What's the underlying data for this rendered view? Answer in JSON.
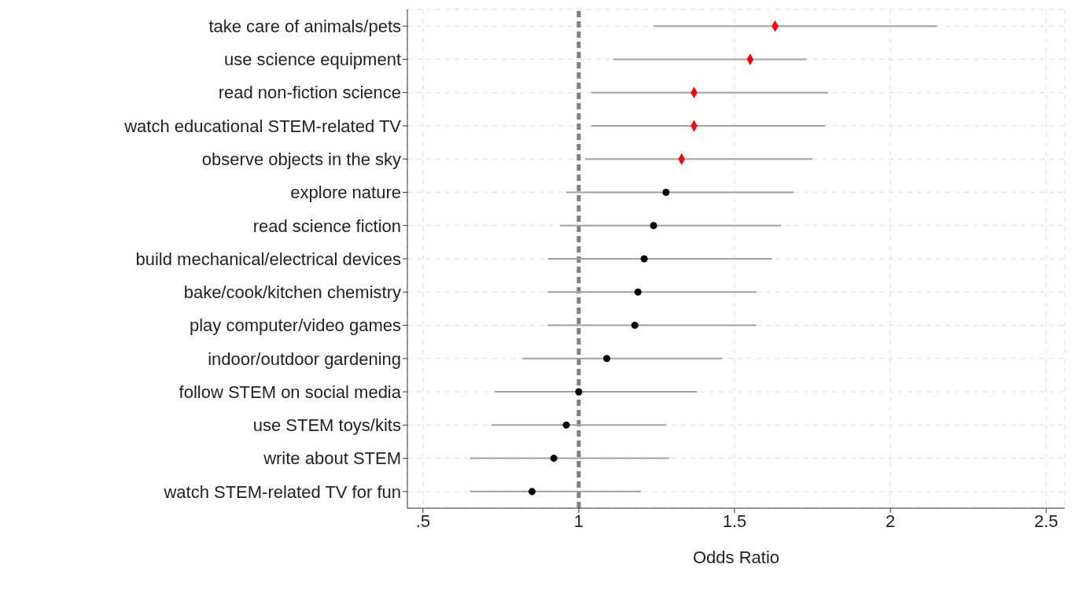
{
  "chart_data": {
    "type": "scatter",
    "orientation": "horizontal",
    "xlabel": "Odds Ratio",
    "categories": [
      "take care of animals/pets",
      "use science equipment",
      "read non-fiction science",
      "watch educational STEM-related TV",
      "observe objects in the sky",
      "explore nature",
      "read science fiction",
      "build mechanical/electrical devices",
      "bake/cook/kitchen chemistry",
      "play computer/video games",
      "indoor/outdoor gardening",
      "follow STEM on social media",
      "use STEM toys/kits",
      "write about STEM",
      "watch STEM-related TV for fun"
    ],
    "series": [
      {
        "color": "#ff0000",
        "marker": "diamond",
        "values": [
          1.63,
          1.55,
          1.37,
          1.37,
          1.33,
          null,
          null,
          null,
          null,
          null,
          null,
          null,
          null,
          null,
          null
        ],
        "errors": [
          [
            1.24,
            2.15
          ],
          [
            1.11,
            1.73
          ],
          [
            1.04,
            1.8
          ],
          [
            1.04,
            1.79
          ],
          [
            1.02,
            1.75
          ],
          null,
          null,
          null,
          null,
          null,
          null,
          null,
          null,
          null,
          null
        ]
      },
      {
        "color": "#000000",
        "marker": "circle",
        "values": [
          null,
          null,
          null,
          null,
          null,
          1.28,
          1.24,
          1.21,
          1.19,
          1.18,
          1.09,
          1.0,
          0.96,
          0.92,
          0.85
        ],
        "errors": [
          null,
          null,
          null,
          null,
          null,
          [
            0.96,
            1.69
          ],
          [
            0.94,
            1.65
          ],
          [
            0.9,
            1.62
          ],
          [
            0.9,
            1.57
          ],
          [
            0.9,
            1.57
          ],
          [
            0.82,
            1.46
          ],
          [
            0.73,
            1.38
          ],
          [
            0.72,
            1.28
          ],
          [
            0.65,
            1.29
          ],
          [
            0.65,
            1.2
          ]
        ]
      }
    ],
    "xlim": [
      0.45,
      2.56
    ],
    "xticks": [
      {
        "value": 0.5,
        "label": ".5"
      },
      1,
      {
        "value": 1.5,
        "label": "1.5"
      },
      2,
      {
        "value": 2.5,
        "label": "2.5"
      }
    ],
    "ref_lines": [
      {
        "axis": "x",
        "value": 1,
        "color": "#808080",
        "line_style": "dashed"
      }
    ],
    "grid": true
  }
}
